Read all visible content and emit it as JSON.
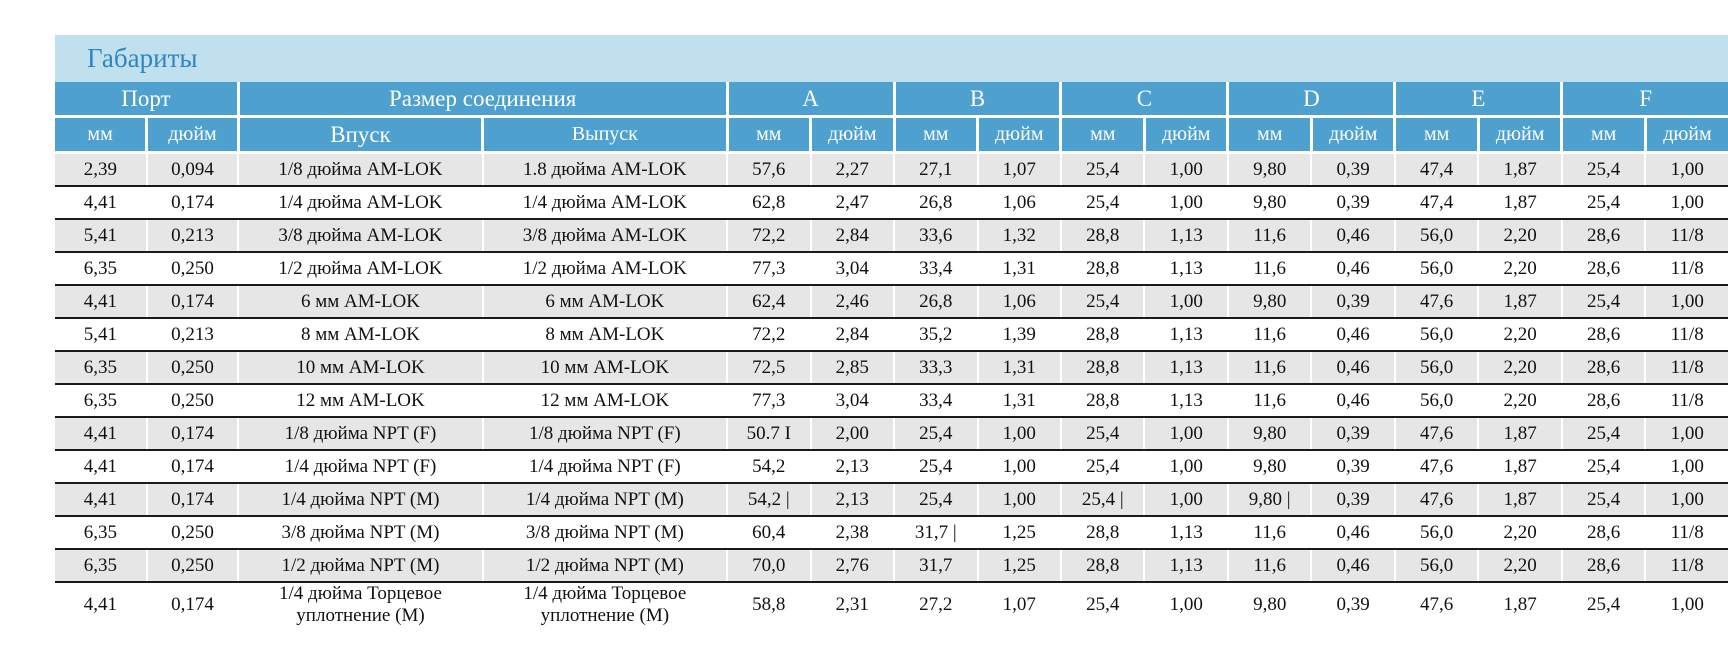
{
  "title": "Габариты",
  "header": {
    "groups": [
      "Порт",
      "Размер соединения",
      "A",
      "B",
      "C",
      "D",
      "E",
      "F"
    ],
    "subs": [
      "мм",
      "дюйм",
      "Впуск",
      "Выпуск",
      "мм",
      "дюйм",
      "мм",
      "дюйм",
      "мм",
      "дюйм",
      "мм",
      "дюйм",
      "мм",
      "дюйм",
      "мм",
      "дюйм"
    ]
  },
  "rows": [
    [
      "2,39",
      "0,094",
      "1/8 дюйма AM-LOK",
      "1.8 дюйма AM-LOK",
      "57,6",
      "2,27",
      "27,1",
      "1,07",
      "25,4",
      "1,00",
      "9,80",
      "0,39",
      "47,4",
      "1,87",
      "25,4",
      "1,00"
    ],
    [
      "4,41",
      "0,174",
      "1/4 дюйма AM-LOK",
      "1/4 дюйма AM-LOK",
      "62,8",
      "2,47",
      "26,8",
      "1,06",
      "25,4",
      "1,00",
      "9,80",
      "0,39",
      "47,4",
      "1,87",
      "25,4",
      "1,00"
    ],
    [
      "5,41",
      "0,213",
      "3/8 дюйма AM-LOK",
      "3/8 дюйма AM-LOK",
      "72,2",
      "2,84",
      "33,6",
      "1,32",
      "28,8",
      "1,13",
      "11,6",
      "0,46",
      "56,0",
      "2,20",
      "28,6",
      "11/8"
    ],
    [
      "6,35",
      "0,250",
      "1/2 дюйма AM-LOK",
      "1/2 дюйма AM-LOK",
      "77,3",
      "3,04",
      "33,4",
      "1,31",
      "28,8",
      "1,13",
      "11,6",
      "0,46",
      "56,0",
      "2,20",
      "28,6",
      "11/8"
    ],
    [
      "4,41",
      "0,174",
      "6 мм AM-LOK",
      "6 мм AM-LOK",
      "62,4",
      "2,46",
      "26,8",
      "1,06",
      "25,4",
      "1,00",
      "9,80",
      "0,39",
      "47,6",
      "1,87",
      "25,4",
      "1,00"
    ],
    [
      "5,41",
      "0,213",
      "8 мм AM-LOK",
      "8 мм AM-LOK",
      "72,2",
      "2,84",
      "35,2",
      "1,39",
      "28,8",
      "1,13",
      "11,6",
      "0,46",
      "56,0",
      "2,20",
      "28,6",
      "11/8"
    ],
    [
      "6,35",
      "0,250",
      "10 мм AM-LOK",
      "10 мм AM-LOK",
      "72,5",
      "2,85",
      "33,3",
      "1,31",
      "28,8",
      "1,13",
      "11,6",
      "0,46",
      "56,0",
      "2,20",
      "28,6",
      "11/8"
    ],
    [
      "6,35",
      "0,250",
      "12 мм AM-LOK",
      "12 мм AM-LOK",
      "77,3",
      "3,04",
      "33,4",
      "1,31",
      "28,8",
      "1,13",
      "11,6",
      "0,46",
      "56,0",
      "2,20",
      "28,6",
      "11/8"
    ],
    [
      "4,41",
      "0,174",
      "1/8 дюйма NPT (F)",
      "1/8 дюйма NPT (F)",
      "50.7 I",
      "2,00",
      "25,4",
      "1,00",
      "25,4",
      "1,00",
      "9,80",
      "0,39",
      "47,6",
      "1,87",
      "25,4",
      "1,00"
    ],
    [
      "4,41",
      "0,174",
      "1/4 дюйма NPT (F)",
      "1/4 дюйма NPT (F)",
      "54,2",
      "2,13",
      "25,4",
      "1,00",
      "25,4",
      "1,00",
      "9,80",
      "0,39",
      "47,6",
      "1,87",
      "25,4",
      "1,00"
    ],
    [
      "4,41",
      "0,174",
      "1/4 дюйма NPT (M)",
      "1/4 дюйма NPT (M)",
      "54,2 |",
      "2,13",
      "25,4",
      "1,00",
      "25,4 |",
      "1,00",
      "9,80 |",
      "0,39",
      "47,6",
      "1,87",
      "25,4",
      "1,00"
    ],
    [
      "6,35",
      "0,250",
      "3/8 дюйма NPT (M)",
      "3/8 дюйма NPT (M)",
      "60,4",
      "2,38",
      "31,7 |",
      "1,25",
      "28,8",
      "1,13",
      "11,6",
      "0,46",
      "56,0",
      "2,20",
      "28,6",
      "11/8"
    ],
    [
      "6,35",
      "0,250",
      "1/2 дюйма NPT (M)",
      "1/2 дюйма NPT (M)",
      "70,0",
      "2,76",
      "31,7",
      "1,25",
      "28,8",
      "1,13",
      "11,6",
      "0,46",
      "56,0",
      "2,20",
      "28,6",
      "11/8"
    ],
    [
      "4,41",
      "0,174",
      "1/4 дюйма Торцевое уплотнение (M)",
      "1/4 дюйма Торцевое уплотнение (M)",
      "58,8",
      "2,31",
      "27,2",
      "1,07",
      "25,4",
      "1,00",
      "9,80",
      "0,39",
      "47,6",
      "1,87",
      "25,4",
      "1,00"
    ]
  ]
}
